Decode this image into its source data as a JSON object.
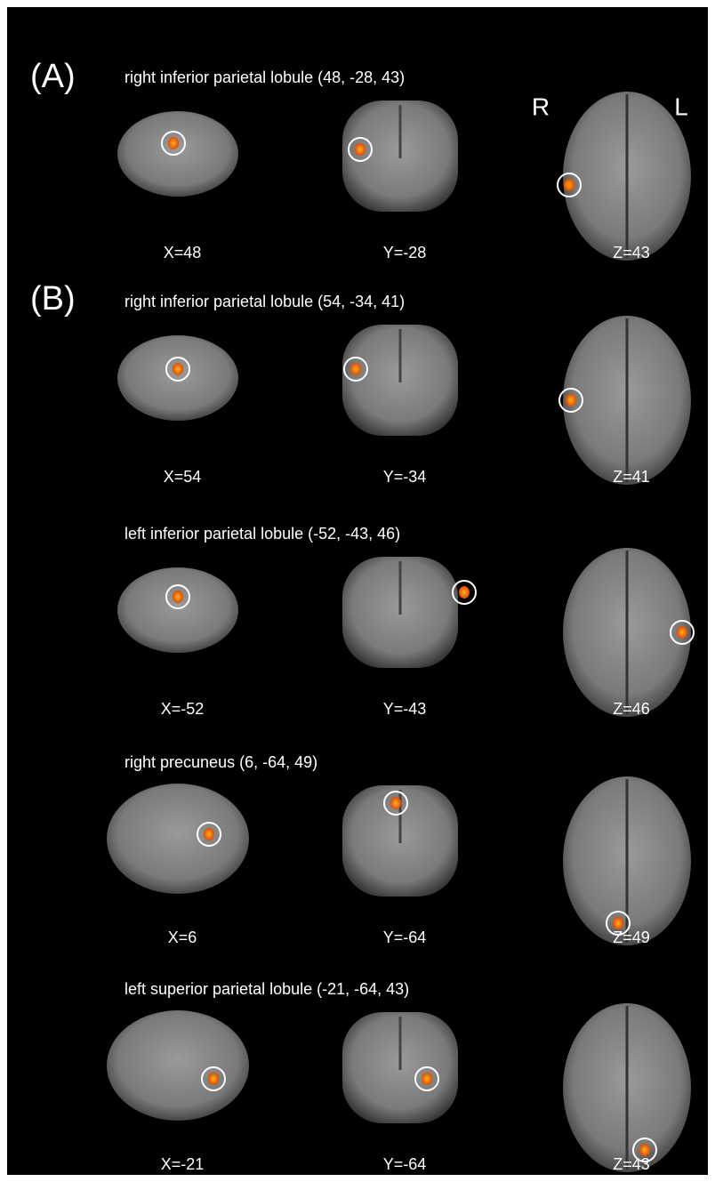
{
  "panels": [
    {
      "label": "(A)"
    },
    {
      "label": "(B)"
    }
  ],
  "orientation": {
    "right": "R",
    "left": "L"
  },
  "rows": [
    {
      "title": "right inferior parietal lobule (48, -28, 43)",
      "slices": [
        "X=48",
        "Y=-28",
        "Z=43"
      ]
    },
    {
      "title": "right inferior parietal lobule (54, -34, 41)",
      "slices": [
        "X=54",
        "Y=-34",
        "Z=41"
      ]
    },
    {
      "title": "left inferior parietal lobule (-52, -43, 46)",
      "slices": [
        "X=-52",
        "Y=-43",
        "Z=46"
      ]
    },
    {
      "title": "right precuneus (6, -64, 49)",
      "slices": [
        "X=6",
        "Y=-64",
        "Z=49"
      ]
    },
    {
      "title": "left superior parietal lobule (-21, -64, 43)",
      "slices": [
        "X=-21",
        "Y=-64",
        "Z=43"
      ]
    }
  ]
}
